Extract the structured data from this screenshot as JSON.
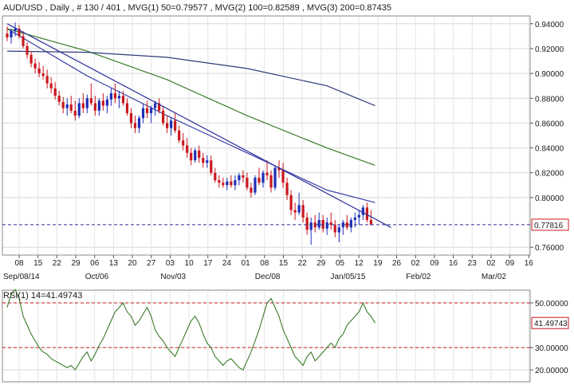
{
  "chart_data": [
    {
      "type": "line",
      "title": "AUD/USD , Daily , # 130 / 401 , MVG(1) 50=0.79577 , MVG(2) 100=0.82589 , MVG(3) 200=0.87435",
      "header": {
        "symbol": "AUD/USD",
        "period": "Daily",
        "count": "# 130 / 401",
        "mvg1": "MVG(1) 50=0.79577",
        "mvg2": "MVG(2) 100=0.82589",
        "mvg3": "MVG(3) 200=0.87435"
      },
      "ylim": [
        0.755,
        0.945
      ],
      "yticks": [
        "0.94000",
        "0.92000",
        "0.90000",
        "0.88000",
        "0.86000",
        "0.84000",
        "0.82000",
        "0.80000",
        "0.76000"
      ],
      "ytick_values": [
        0.94,
        0.92,
        0.9,
        0.88,
        0.86,
        0.84,
        0.82,
        0.8,
        0.76
      ],
      "current_value": 0.77816,
      "current_label": "0.77816",
      "x_day_ticks": [
        "08",
        "15",
        "22",
        "29",
        "06",
        "13",
        "20",
        "27",
        "03",
        "10",
        "17",
        "24",
        "01",
        "08",
        "15",
        "22",
        "29",
        "05",
        "12",
        "19",
        "26",
        "02",
        "09",
        "16",
        "23",
        "02",
        "09",
        "16"
      ],
      "x_month_labels": [
        "Sep/08/14",
        "Oct/06",
        "Nov/03",
        "Dec/08",
        "Jan/05/15",
        "Feb/02",
        "Mar/02"
      ],
      "grid": true,
      "candles": [
        [
          0.932,
          0.938,
          0.926,
          0.929
        ],
        [
          0.929,
          0.936,
          0.924,
          0.934
        ],
        [
          0.934,
          0.941,
          0.93,
          0.936
        ],
        [
          0.936,
          0.939,
          0.928,
          0.93
        ],
        [
          0.93,
          0.934,
          0.92,
          0.922
        ],
        [
          0.922,
          0.925,
          0.912,
          0.915
        ],
        [
          0.915,
          0.918,
          0.905,
          0.908
        ],
        [
          0.908,
          0.912,
          0.9,
          0.904
        ],
        [
          0.904,
          0.909,
          0.897,
          0.9
        ],
        [
          0.9,
          0.906,
          0.895,
          0.898
        ],
        [
          0.898,
          0.903,
          0.888,
          0.892
        ],
        [
          0.892,
          0.897,
          0.884,
          0.888
        ],
        [
          0.888,
          0.893,
          0.879,
          0.882
        ],
        [
          0.882,
          0.886,
          0.874,
          0.877
        ],
        [
          0.877,
          0.881,
          0.868,
          0.872
        ],
        [
          0.872,
          0.88,
          0.866,
          0.875
        ],
        [
          0.875,
          0.882,
          0.868,
          0.87
        ],
        [
          0.87,
          0.878,
          0.862,
          0.866
        ],
        [
          0.866,
          0.88,
          0.864,
          0.876
        ],
        [
          0.876,
          0.884,
          0.868,
          0.872
        ],
        [
          0.872,
          0.883,
          0.868,
          0.88
        ],
        [
          0.88,
          0.892,
          0.874,
          0.876
        ],
        [
          0.876,
          0.882,
          0.866,
          0.87
        ],
        [
          0.87,
          0.88,
          0.866,
          0.878
        ],
        [
          0.878,
          0.884,
          0.87,
          0.874
        ],
        [
          0.874,
          0.882,
          0.868,
          0.879
        ],
        [
          0.879,
          0.888,
          0.874,
          0.884
        ],
        [
          0.884,
          0.892,
          0.876,
          0.88
        ],
        [
          0.88,
          0.886,
          0.872,
          0.882
        ],
        [
          0.882,
          0.886,
          0.874,
          0.876
        ],
        [
          0.876,
          0.88,
          0.866,
          0.868
        ],
        [
          0.868,
          0.872,
          0.856,
          0.86
        ],
        [
          0.86,
          0.866,
          0.852,
          0.856
        ],
        [
          0.856,
          0.866,
          0.852,
          0.864
        ],
        [
          0.864,
          0.876,
          0.86,
          0.872
        ],
        [
          0.872,
          0.878,
          0.864,
          0.868
        ],
        [
          0.868,
          0.874,
          0.86,
          0.872
        ],
        [
          0.872,
          0.878,
          0.866,
          0.876
        ],
        [
          0.876,
          0.88,
          0.868,
          0.87
        ],
        [
          0.87,
          0.874,
          0.858,
          0.86
        ],
        [
          0.86,
          0.866,
          0.852,
          0.856
        ],
        [
          0.856,
          0.864,
          0.85,
          0.862
        ],
        [
          0.862,
          0.868,
          0.852,
          0.854
        ],
        [
          0.854,
          0.858,
          0.844,
          0.846
        ],
        [
          0.846,
          0.852,
          0.838,
          0.842
        ],
        [
          0.842,
          0.848,
          0.832,
          0.836
        ],
        [
          0.836,
          0.84,
          0.826,
          0.83
        ],
        [
          0.83,
          0.84,
          0.828,
          0.838
        ],
        [
          0.838,
          0.842,
          0.828,
          0.832
        ],
        [
          0.832,
          0.836,
          0.824,
          0.828
        ],
        [
          0.828,
          0.834,
          0.824,
          0.83
        ],
        [
          0.83,
          0.834,
          0.818,
          0.82
        ],
        [
          0.82,
          0.824,
          0.812,
          0.814
        ],
        [
          0.814,
          0.818,
          0.808,
          0.812
        ],
        [
          0.812,
          0.816,
          0.808,
          0.81
        ],
        [
          0.81,
          0.816,
          0.806,
          0.813
        ],
        [
          0.813,
          0.818,
          0.808,
          0.81
        ],
        [
          0.81,
          0.818,
          0.806,
          0.814
        ],
        [
          0.814,
          0.82,
          0.81,
          0.818
        ],
        [
          0.818,
          0.822,
          0.812,
          0.816
        ],
        [
          0.816,
          0.82,
          0.806,
          0.808
        ],
        [
          0.808,
          0.812,
          0.8,
          0.804
        ],
        [
          0.804,
          0.818,
          0.802,
          0.816
        ],
        [
          0.816,
          0.824,
          0.81,
          0.812
        ],
        [
          0.812,
          0.822,
          0.808,
          0.82
        ],
        [
          0.82,
          0.83,
          0.814,
          0.818
        ],
        [
          0.818,
          0.822,
          0.804,
          0.808
        ],
        [
          0.808,
          0.826,
          0.806,
          0.824
        ],
        [
          0.824,
          0.83,
          0.816,
          0.822
        ],
        [
          0.822,
          0.828,
          0.808,
          0.812
        ],
        [
          0.812,
          0.816,
          0.798,
          0.802
        ],
        [
          0.802,
          0.806,
          0.786,
          0.79
        ],
        [
          0.79,
          0.796,
          0.782,
          0.788
        ],
        [
          0.788,
          0.804,
          0.786,
          0.794
        ],
        [
          0.794,
          0.798,
          0.78,
          0.784
        ],
        [
          0.784,
          0.788,
          0.77,
          0.774
        ],
        [
          0.774,
          0.784,
          0.762,
          0.78
        ],
        [
          0.78,
          0.786,
          0.772,
          0.776
        ],
        [
          0.776,
          0.788,
          0.774,
          0.782
        ],
        [
          0.782,
          0.786,
          0.772,
          0.775
        ],
        [
          0.775,
          0.784,
          0.77,
          0.78
        ],
        [
          0.78,
          0.788,
          0.774,
          0.778
        ],
        [
          0.778,
          0.782,
          0.768,
          0.772
        ],
        [
          0.772,
          0.778,
          0.764,
          0.776
        ],
        [
          0.776,
          0.782,
          0.77,
          0.78
        ],
        [
          0.78,
          0.786,
          0.774,
          0.776
        ],
        [
          0.776,
          0.784,
          0.772,
          0.782
        ],
        [
          0.782,
          0.788,
          0.776,
          0.784
        ],
        [
          0.784,
          0.79,
          0.778,
          0.786
        ],
        [
          0.786,
          0.794,
          0.782,
          0.792
        ],
        [
          0.792,
          0.796,
          0.78,
          0.782
        ],
        [
          0.782,
          0.79,
          0.778,
          0.778
        ]
      ],
      "series": [
        {
          "name": "MVG(1) 50=0.79577",
          "color": "#3a3fa6",
          "x": [
            0,
            20,
            40,
            60,
            80,
            92
          ],
          "values": [
            0.936,
            0.898,
            0.866,
            0.836,
            0.806,
            0.796
          ]
        },
        {
          "name": "MVG(2) 100=0.82589",
          "color": "#3a7a2a",
          "x": [
            0,
            20,
            40,
            60,
            80,
            92
          ],
          "values": [
            0.936,
            0.918,
            0.895,
            0.866,
            0.84,
            0.826
          ]
        },
        {
          "name": "MVG(3) 200=0.87435",
          "color": "#2e3a7a",
          "x": [
            0,
            20,
            40,
            60,
            80,
            92
          ],
          "values": [
            0.918,
            0.917,
            0.913,
            0.904,
            0.89,
            0.874
          ]
        }
      ],
      "trendline": {
        "color": "#2b2f9a",
        "x": [
          0,
          96
        ],
        "values": [
          0.94,
          0.776
        ]
      }
    },
    {
      "type": "line",
      "title": "RSI(1) 14=41.49743",
      "ylim": [
        15,
        55
      ],
      "yticks": [
        "50.00000",
        "30.00000",
        "20.00000"
      ],
      "ytick_values": [
        50,
        30,
        20
      ],
      "current_label": "41.49743",
      "overbought_line": 50,
      "oversold_line": 30,
      "series": [
        {
          "name": "RSI(1) 14=41.49743",
          "color": "#3a7a2a",
          "values": [
            48,
            54,
            56,
            52,
            44,
            40,
            36,
            33,
            30,
            28,
            27,
            25,
            24,
            23,
            22,
            21,
            22,
            20,
            23,
            26,
            28,
            24,
            27,
            31,
            34,
            38,
            42,
            46,
            48,
            50,
            46,
            44,
            40,
            42,
            45,
            48,
            44,
            38,
            35,
            33,
            30,
            28,
            26,
            30,
            34,
            38,
            42,
            44,
            41,
            36,
            32,
            30,
            26,
            24,
            22,
            24,
            25,
            23,
            21,
            20,
            24,
            28,
            33,
            38,
            44,
            50,
            52,
            48,
            44,
            38,
            34,
            30,
            26,
            24,
            22,
            26,
            28,
            24,
            26,
            28,
            30,
            32,
            30,
            34,
            36,
            40,
            42,
            44,
            46,
            50,
            46,
            44,
            41
          ]
        }
      ]
    }
  ]
}
